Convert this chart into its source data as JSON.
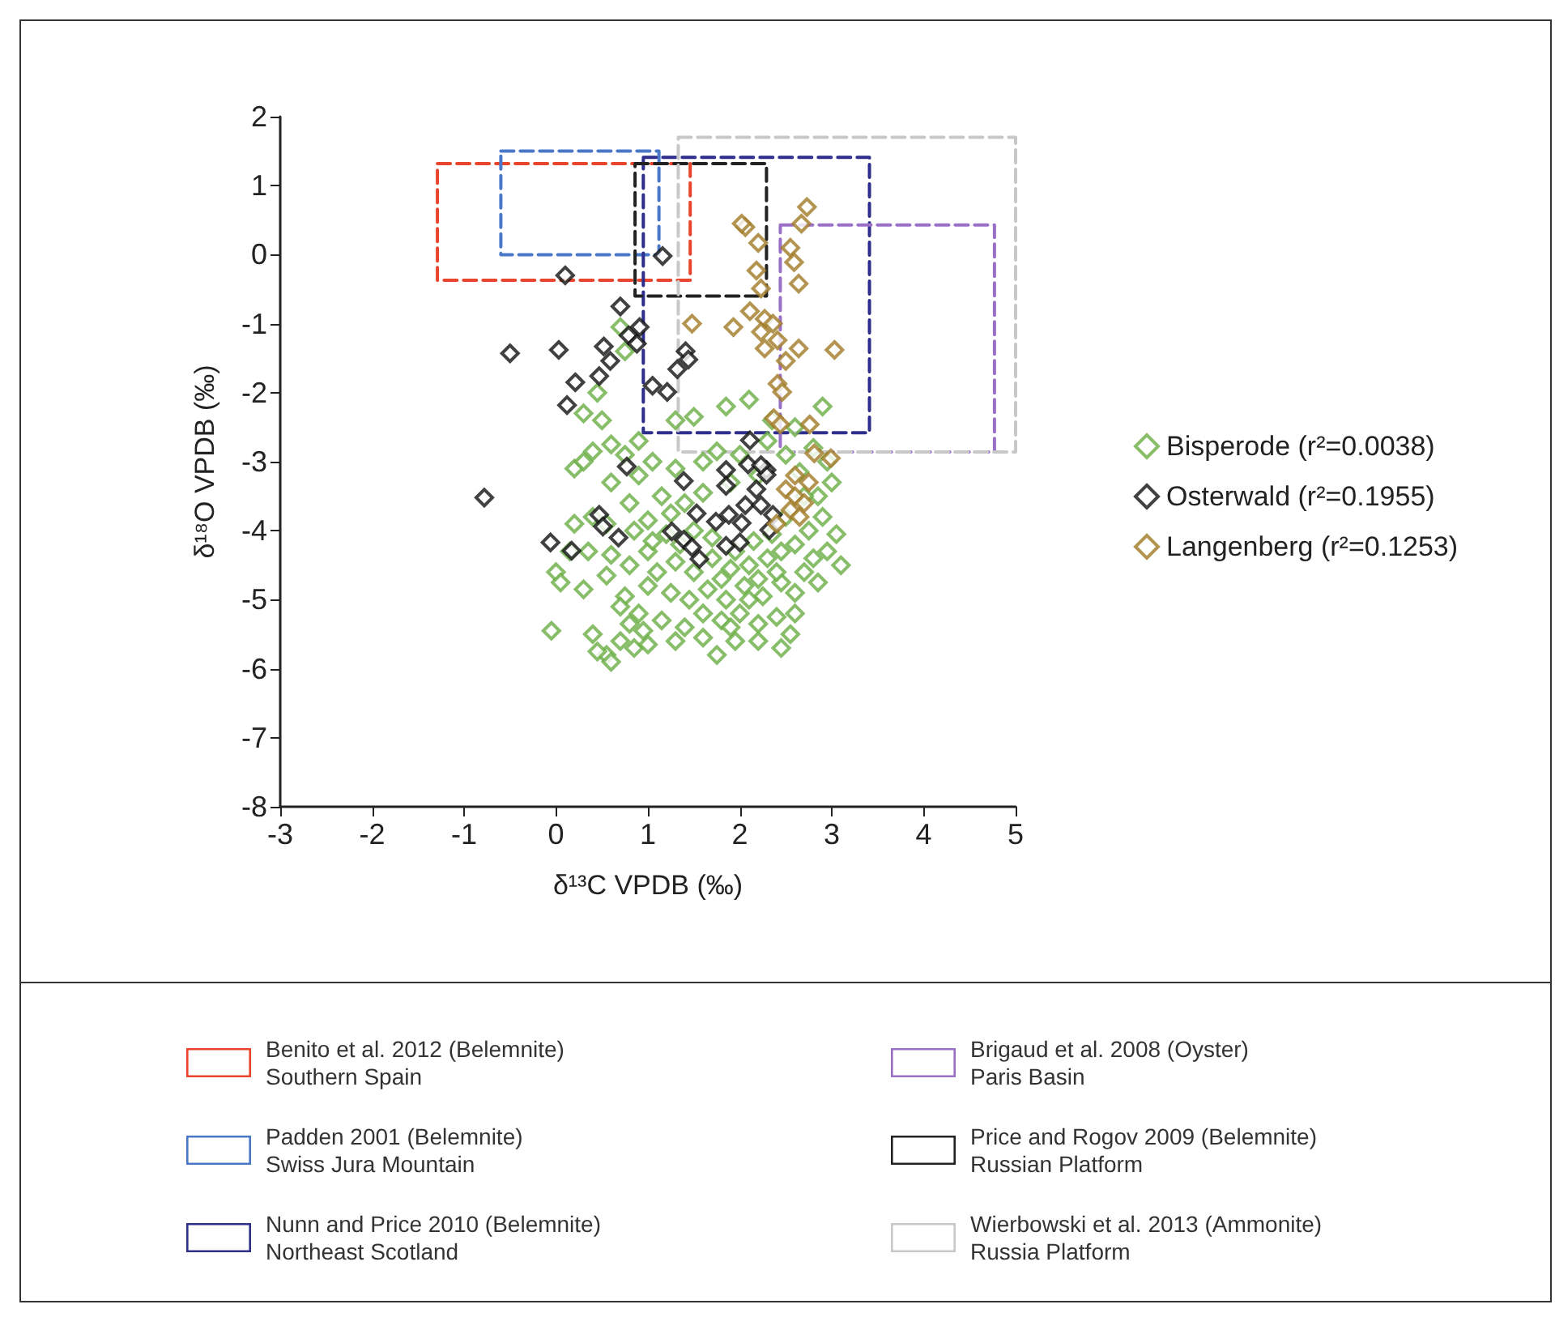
{
  "chart_data": {
    "type": "scatter",
    "xlabel": "δ¹³C VPDB (‰)",
    "ylabel": "δ¹⁸O VPDB (‰)",
    "xlim": [
      -3,
      5
    ],
    "xticks": [
      -3,
      -2,
      -1,
      0,
      1,
      2,
      3,
      4,
      5
    ],
    "ylim": [
      -8,
      2
    ],
    "yticks": [
      -8,
      -7,
      -6,
      -5,
      -4,
      -3,
      -2,
      -1,
      0,
      1,
      2
    ],
    "grid": false,
    "legend": "right",
    "marker": "diamond",
    "line_style": "dashed",
    "series": [
      {
        "name": "Bisperode (r²=0.0038)",
        "color": "#6aae45",
        "x": [
          0.7,
          0.75,
          0.45,
          0.5,
          0.3,
          1.3,
          1.5,
          1.85,
          2.1,
          2.35,
          2.9,
          2.6,
          0.9,
          0.6,
          0.4,
          0.2,
          0.3,
          0.75,
          1.05,
          0.9,
          1.15,
          0.6,
          0.8,
          0.4,
          0.55,
          1.3,
          1.6,
          1.75,
          2.0,
          2.5,
          2.8,
          2.95,
          3.0,
          2.85,
          1.0,
          1.2,
          1.4,
          1.6,
          2.9,
          3.05,
          2.75,
          2.6,
          3.1,
          2.95,
          2.3,
          2.1,
          1.9,
          1.7,
          1.5,
          1.3,
          1.0,
          0.8,
          0.6,
          0.0,
          0.05,
          0.3,
          0.55,
          0.75,
          1.0,
          1.25,
          1.45,
          1.65,
          1.85,
          2.05,
          2.25,
          2.45,
          2.7,
          2.85,
          2.6,
          2.4,
          2.2,
          1.8,
          1.6,
          1.8,
          2.0,
          2.2,
          2.4,
          2.55,
          2.45,
          2.2,
          1.95,
          1.75,
          1.6,
          1.4,
          1.15,
          0.95,
          0.8,
          0.85,
          0.7,
          0.55,
          0.45,
          0.6,
          0.4,
          0.7,
          0.9,
          -0.05,
          0.2,
          0.15,
          1.1,
          1.35,
          1.5,
          1.7,
          1.95,
          2.15,
          2.35,
          2.5,
          2.7,
          2.2,
          1.9,
          2.3,
          2.65,
          2.8,
          2.45,
          1.25,
          1.05,
          0.35,
          0.85,
          1.9,
          2.1,
          1.3,
          1.0,
          2.6
        ],
        "values": [
          -1.05,
          -1.4,
          -2.0,
          -2.4,
          -2.3,
          -2.4,
          -2.35,
          -2.2,
          -2.1,
          -2.4,
          -2.2,
          -2.5,
          -2.7,
          -2.75,
          -2.85,
          -3.1,
          -3.0,
          -2.9,
          -3.0,
          -3.2,
          -3.5,
          -3.3,
          -3.6,
          -3.8,
          -3.9,
          -3.1,
          -3.0,
          -2.85,
          -2.9,
          -2.9,
          -2.8,
          -3.0,
          -3.3,
          -3.5,
          -3.85,
          -4.05,
          -3.6,
          -3.45,
          -3.8,
          -4.05,
          -4.0,
          -4.2,
          -4.5,
          -4.3,
          -4.4,
          -4.5,
          -4.55,
          -4.4,
          -4.6,
          -4.45,
          -4.3,
          -4.5,
          -4.35,
          -4.6,
          -4.75,
          -4.85,
          -4.65,
          -4.95,
          -4.8,
          -4.9,
          -5.0,
          -4.85,
          -5.0,
          -4.8,
          -4.95,
          -4.75,
          -4.6,
          -4.75,
          -4.9,
          -4.6,
          -4.7,
          -4.7,
          -5.2,
          -5.3,
          -5.2,
          -5.35,
          -5.25,
          -5.5,
          -5.7,
          -5.6,
          -5.6,
          -5.8,
          -5.55,
          -5.4,
          -5.3,
          -5.45,
          -5.35,
          -5.7,
          -5.6,
          -5.8,
          -5.75,
          -5.9,
          -5.5,
          -5.1,
          -5.2,
          -5.45,
          -3.9,
          -4.3,
          -4.6,
          -4.2,
          -4.0,
          -4.1,
          -4.3,
          -4.15,
          -4.05,
          -3.8,
          -3.5,
          -3.2,
          -3.3,
          -2.7,
          -3.15,
          -4.4,
          -4.3,
          -3.75,
          -4.15,
          -4.3,
          -4.0,
          -5.4,
          -5.0,
          -5.6,
          -5.65,
          -5.2
        ]
      },
      {
        "name": "Osterwald (r²=0.1955)",
        "color": "#111111",
        "x": [
          1.16,
          0.1,
          0.7,
          0.91,
          0.79,
          0.88,
          -0.5,
          0.03,
          0.52,
          0.59,
          0.47,
          0.21,
          0.12,
          1.41,
          1.44,
          1.32,
          1.05,
          1.21,
          2.11,
          0.77,
          1.39,
          -0.78,
          1.85,
          2.09,
          2.29,
          -0.06,
          0.17,
          0.47,
          0.51,
          0.68,
          1.26,
          1.39,
          1.56,
          1.53,
          1.74,
          1.85,
          1.88,
          2.02,
          2.06,
          1.85,
          2.23,
          2.18,
          2.36,
          2.32,
          1.48,
          2.0,
          2.29,
          2.23
        ],
        "values": [
          -0.02,
          -0.3,
          -0.75,
          -1.05,
          -1.17,
          -1.29,
          -1.43,
          -1.38,
          -1.33,
          -1.54,
          -1.76,
          -1.85,
          -2.18,
          -1.4,
          -1.52,
          -1.66,
          -1.9,
          -1.99,
          -2.69,
          -3.07,
          -3.28,
          -3.52,
          -3.12,
          -3.04,
          -3.12,
          -4.17,
          -4.29,
          -3.77,
          -3.94,
          -4.1,
          -4.01,
          -4.13,
          -4.41,
          -3.75,
          -3.87,
          -4.22,
          -3.77,
          -3.89,
          -3.63,
          -3.35,
          -3.63,
          -3.4,
          -3.77,
          -3.99,
          -4.24,
          -4.17,
          -3.19,
          -3.05
        ]
      },
      {
        "name": "Langenberg (r²=0.1253)",
        "color": "#a07a25",
        "x": [
          2.73,
          2.67,
          2.06,
          2.02,
          2.2,
          2.55,
          2.59,
          2.64,
          2.18,
          2.23,
          1.48,
          1.93,
          2.11,
          2.27,
          2.36,
          2.23,
          2.41,
          2.27,
          2.64,
          3.03,
          2.5,
          2.41,
          2.46,
          2.37,
          2.44,
          2.76,
          2.99,
          2.81,
          2.5,
          2.6,
          2.7,
          2.55,
          2.65,
          2.4,
          2.75,
          2.6
        ],
        "values": [
          0.69,
          0.45,
          0.4,
          0.45,
          0.17,
          0.1,
          -0.11,
          -0.42,
          -0.23,
          -0.49,
          -1.0,
          -1.05,
          -0.82,
          -0.93,
          -1.0,
          -1.12,
          -1.24,
          -1.36,
          -1.36,
          -1.38,
          -1.54,
          -1.87,
          -1.99,
          -2.37,
          -2.46,
          -2.46,
          -2.95,
          -2.88,
          -3.4,
          -3.5,
          -3.6,
          -3.7,
          -3.8,
          -3.9,
          -3.3,
          -3.2
        ]
      },
      {
        "type": "line",
        "name": "Benito et al. 2012 (Belemnite)\nSouthern Spain",
        "color": "#e8452c",
        "marker": "none",
        "x": [
          -1.29,
          1.46,
          1.46,
          -1.29,
          -1.29
        ],
        "values": [
          1.32,
          1.32,
          -0.37,
          -0.37,
          1.3
        ]
      },
      {
        "type": "line",
        "name": "Padden 2001 (Belemnite)\nSwiss Jura Mountain",
        "color": "#4a78c8",
        "marker": "none",
        "x": [
          -0.6,
          1.12,
          1.12,
          -0.6,
          -0.6
        ],
        "values": [
          1.5,
          1.5,
          0.0,
          0.0,
          1.48
        ]
      },
      {
        "type": "line",
        "name": "Nunn and Price 2010 (Belemnite)\nNortheast Scotland",
        "color": "#2e2e8c",
        "marker": "none",
        "x": [
          0.95,
          3.41,
          3.41,
          0.95,
          0.95
        ],
        "values": [
          1.41,
          1.41,
          -2.58,
          -2.58,
          1.39
        ]
      },
      {
        "type": "line",
        "name": "Brigaud et al. 2008 (Oyster)\nParis Basin",
        "color": "#9a6fc8",
        "marker": "none",
        "x": [
          2.44,
          4.77,
          4.77,
          2.44,
          2.44
        ],
        "values": [
          0.43,
          0.43,
          -2.86,
          -2.86,
          0.41
        ]
      },
      {
        "type": "line",
        "name": "Price and Rogov 2009 (Belemnite)\nRussian Platform",
        "color": "#222222",
        "marker": "none",
        "x": [
          0.86,
          2.29,
          2.29,
          0.86,
          0.86
        ],
        "values": [
          1.32,
          1.32,
          -0.6,
          -0.6,
          1.3
        ]
      },
      {
        "type": "line",
        "name": "Wierbowski et al. 2013 (Ammonite)\nRussia Platform",
        "color": "#c8c8c8",
        "marker": "none",
        "x": [
          1.33,
          5.0,
          5.0,
          1.33,
          1.33
        ],
        "values": [
          1.7,
          1.7,
          -2.86,
          -2.86,
          1.68
        ]
      }
    ]
  }
}
